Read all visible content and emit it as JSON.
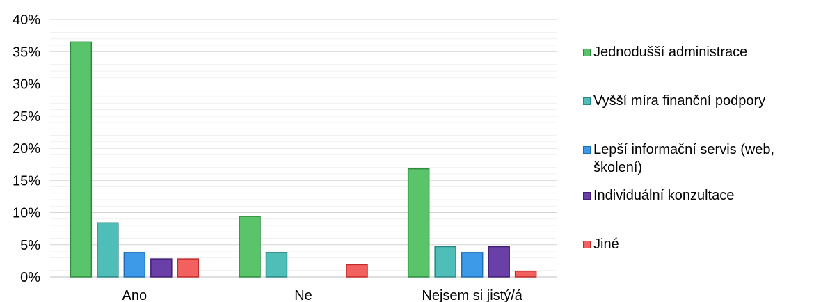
{
  "chart_data": {
    "type": "bar",
    "categories": [
      "Ano",
      "Ne",
      "Nejsem si jistý/á"
    ],
    "series": [
      {
        "name": "Jednodušší administrace",
        "values": [
          36.5,
          9.4,
          16.8
        ],
        "color": "#5ac46a",
        "edge": "#2f8a3e"
      },
      {
        "name": "Vyšší míra finanční podpory",
        "values": [
          8.4,
          3.8,
          4.7
        ],
        "color": "#4fbdb8",
        "edge": "#2a8782"
      },
      {
        "name": "Lepší informační servis (web, školení)",
        "values": [
          3.8,
          0,
          3.8
        ],
        "color": "#3d9ae8",
        "edge": "#1f6db3"
      },
      {
        "name": "Individuální konzultace",
        "values": [
          2.8,
          0,
          4.7
        ],
        "color": "#6a3fa8",
        "edge": "#3f1f73"
      },
      {
        "name": "Jiné",
        "values": [
          2.8,
          1.9,
          0.9
        ],
        "color": "#f2605f",
        "edge": "#c12a2a"
      }
    ],
    "ylim": [
      0,
      40
    ],
    "yticks": [
      "0%",
      "5%",
      "10%",
      "15%",
      "20%",
      "25%",
      "30%",
      "35%",
      "40%"
    ],
    "grid": true,
    "legend_position": "right"
  }
}
